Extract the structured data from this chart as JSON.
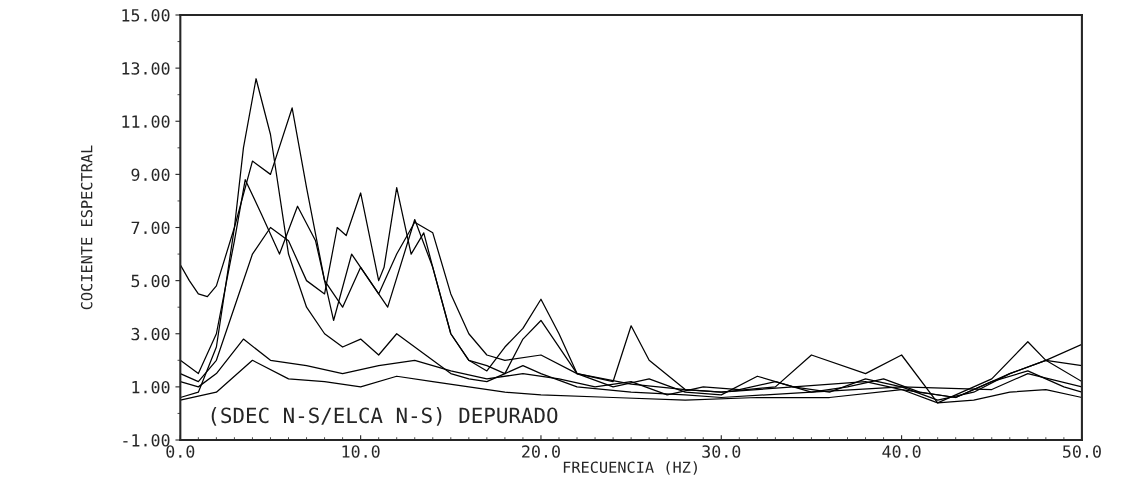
{
  "chart_data": {
    "type": "line",
    "xlabel": "FRECUENCIA (HZ)",
    "ylabel": "COCIENTE ESPECTRAL",
    "annotations": [
      "(SDEC N-S/ELCA N-S) DEPURADO"
    ],
    "xlim": [
      0,
      50
    ],
    "ylim": [
      -1,
      15
    ],
    "xticks": [
      {
        "value": 0,
        "label": "0.0"
      },
      {
        "value": 10,
        "label": "10.0"
      },
      {
        "value": 20,
        "label": "20.0"
      },
      {
        "value": 30,
        "label": "30.0"
      },
      {
        "value": 40,
        "label": "40.0"
      },
      {
        "value": 50,
        "label": "50.0"
      }
    ],
    "yticks": [
      {
        "value": -1,
        "label": "-1.00"
      },
      {
        "value": 1,
        "label": "1.00"
      },
      {
        "value": 3,
        "label": "3.00"
      },
      {
        "value": 5,
        "label": "5.00"
      },
      {
        "value": 7,
        "label": "7.00"
      },
      {
        "value": 9,
        "label": "9.00"
      },
      {
        "value": 11,
        "label": "11.00"
      },
      {
        "value": 13,
        "label": "13.00"
      },
      {
        "value": 15,
        "label": "15.00"
      }
    ],
    "grid": false,
    "legend": false,
    "series": [
      {
        "color": "#000000",
        "x": [
          0,
          1,
          2,
          3,
          3.5,
          4.2,
          5,
          6,
          7,
          8,
          9,
          10,
          11,
          12,
          13,
          14,
          15,
          16,
          17,
          18,
          19,
          20,
          22,
          25,
          28,
          30,
          35,
          40,
          45,
          47,
          50
        ],
        "values": [
          0.6,
          0.8,
          2.5,
          7,
          10,
          12.6,
          10.5,
          6,
          4,
          3,
          2.5,
          2.8,
          2.2,
          3,
          2.5,
          2,
          1.5,
          1.3,
          1.2,
          1.5,
          1.8,
          1.5,
          1,
          0.8,
          0.7,
          0.6,
          0.8,
          1,
          0.9,
          1.5,
          1
        ]
      },
      {
        "color": "#000000",
        "x": [
          0,
          0.5,
          1,
          1.5,
          2,
          3,
          4,
          5,
          6.2,
          7,
          8,
          9,
          10,
          11,
          12,
          13,
          14,
          15,
          16,
          17,
          18,
          20,
          22,
          25,
          28,
          30,
          34,
          38,
          40,
          43,
          46,
          48,
          50
        ],
        "values": [
          5.6,
          5,
          4.5,
          4.4,
          4.8,
          7,
          9.5,
          9,
          11.5,
          8.5,
          5,
          4,
          5.5,
          4.5,
          6,
          7.2,
          6.8,
          4.5,
          3,
          2.2,
          2,
          2.2,
          1.5,
          1.1,
          0.9,
          0.8,
          1,
          1.2,
          0.9,
          0.6,
          1.5,
          2,
          1.8
        ]
      },
      {
        "color": "#000000",
        "x": [
          0,
          1,
          2,
          3,
          4,
          5,
          6,
          7,
          8,
          8.7,
          9.2,
          10,
          11,
          11.3,
          12,
          12.8,
          13.5,
          14,
          15,
          16,
          17,
          18,
          19,
          20,
          21,
          22,
          24,
          25,
          26,
          28,
          30,
          33,
          35,
          38,
          40,
          42,
          45,
          47,
          48,
          50
        ],
        "values": [
          1.5,
          1.2,
          2,
          4,
          6,
          7,
          6.5,
          5,
          4.5,
          7,
          6.7,
          8.3,
          5,
          5.5,
          8.5,
          6,
          6.8,
          5.5,
          3,
          2,
          1.6,
          2.5,
          3.2,
          4.3,
          3,
          1.5,
          1.2,
          3.3,
          2,
          0.9,
          0.8,
          1,
          2.2,
          1.5,
          2.2,
          0.4,
          1.3,
          2.7,
          2,
          2.6
        ]
      },
      {
        "color": "#000000",
        "x": [
          0,
          2,
          4,
          6,
          8,
          10,
          12,
          14,
          16,
          18,
          20,
          24,
          28,
          32,
          36,
          40,
          42,
          44,
          46,
          48,
          50
        ],
        "values": [
          0.5,
          0.8,
          2,
          1.3,
          1.2,
          1,
          1.4,
          1.2,
          1,
          0.8,
          0.7,
          0.6,
          0.5,
          0.6,
          0.6,
          0.9,
          0.4,
          0.5,
          0.8,
          0.9,
          0.6
        ]
      },
      {
        "color": "#000000",
        "x": [
          0,
          1,
          2,
          3,
          3.6,
          4.5,
          5.5,
          6.5,
          7.5,
          8.5,
          9.5,
          10.5,
          11.5,
          13,
          14,
          15,
          16,
          17,
          18,
          19,
          20,
          22,
          24,
          26,
          28,
          30,
          32,
          34,
          36,
          38,
          40,
          42,
          44,
          46,
          48,
          50
        ],
        "values": [
          2,
          1.5,
          3,
          6.5,
          8.8,
          7.5,
          6,
          7.8,
          6.5,
          3.5,
          6,
          5,
          4,
          7.3,
          5.5,
          3,
          2,
          1.8,
          1.5,
          2.8,
          3.5,
          1.5,
          1,
          1.3,
          0.8,
          0.7,
          1.4,
          1,
          0.8,
          1.3,
          1,
          0.5,
          0.8,
          1.5,
          2,
          1.2
        ]
      },
      {
        "color": "#000000",
        "x": [
          0,
          1,
          2,
          3.5,
          5,
          7,
          9,
          11,
          13,
          15,
          17,
          19,
          21,
          23,
          25,
          27,
          29,
          31,
          33,
          35,
          37,
          39,
          41,
          43,
          45,
          47,
          49,
          50
        ],
        "values": [
          1.2,
          1,
          1.5,
          2.8,
          2,
          1.8,
          1.5,
          1.8,
          2,
          1.6,
          1.3,
          1.5,
          1.3,
          1,
          1.2,
          0.7,
          1,
          0.9,
          1.2,
          0.8,
          1,
          1.3,
          0.8,
          0.6,
          1.2,
          1.6,
          1,
          0.8
        ]
      }
    ]
  }
}
